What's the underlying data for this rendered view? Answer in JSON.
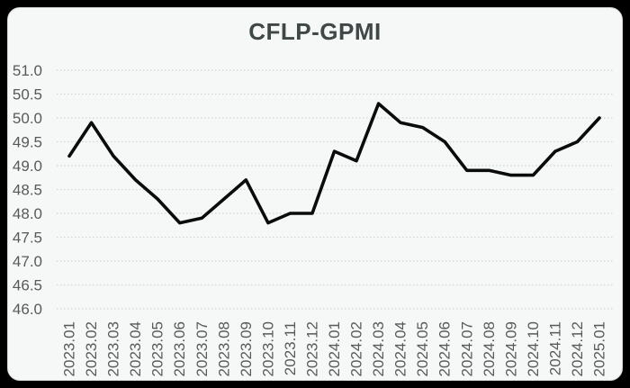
{
  "window": {
    "background_color": "#000000",
    "panel_color": "#f6f7f7"
  },
  "chart_data": {
    "type": "line",
    "title": "CFLP-GPMI",
    "xlabel": "",
    "ylabel": "",
    "categories": [
      "2023.01",
      "2023.02",
      "2023.03",
      "2023.04",
      "2023.05",
      "2023.06",
      "2023.07",
      "2023.08",
      "2023.09",
      "2023.10",
      "2023.11",
      "2023.12",
      "2024.01",
      "2024.02",
      "2024.03",
      "2024.04",
      "2024.05",
      "2024.06",
      "2024.07",
      "2024.08",
      "2024.09",
      "2024.10",
      "2024.11",
      "2024.12",
      "2025.01"
    ],
    "series": [
      {
        "name": "CFLP-GPMI",
        "values": [
          49.2,
          49.9,
          49.2,
          48.7,
          48.3,
          47.8,
          47.9,
          48.3,
          48.7,
          47.8,
          48.0,
          48.0,
          49.3,
          49.1,
          50.3,
          49.9,
          49.8,
          49.5,
          48.9,
          48.9,
          48.8,
          48.8,
          49.3,
          49.5,
          50.0
        ]
      }
    ],
    "ylim": [
      46.0,
      51.0
    ],
    "ytick_step": 0.5,
    "y_tick_labels": [
      "51.0",
      "50.5",
      "50.0",
      "49.5",
      "49.0",
      "48.5",
      "48.0",
      "47.5",
      "47.0",
      "46.5",
      "46.0"
    ],
    "grid": "horizontal-dotted",
    "legend_position": "none",
    "x_label_rotation_deg": 90,
    "colors": {
      "line": "#0b0b0b",
      "grid": "#c8dada",
      "tick_label": "#595959",
      "title": "#3f4747"
    }
  }
}
